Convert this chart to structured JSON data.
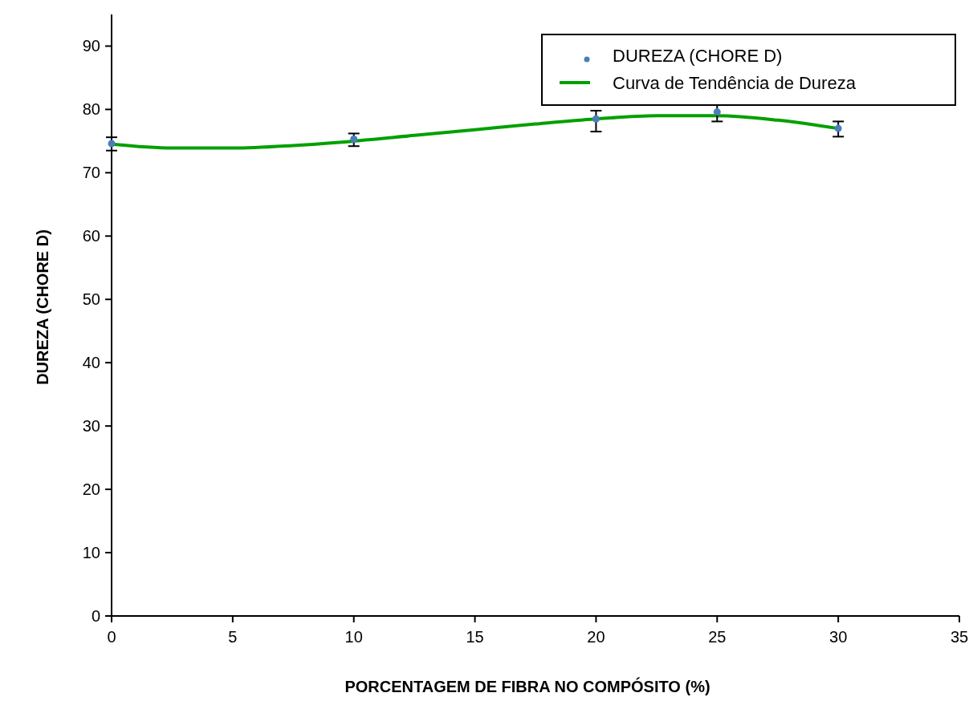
{
  "chart_data": {
    "type": "scatter",
    "xlabel": "PORCENTAGEM DE FIBRA NO COMPÓSITO (%)",
    "ylabel": "DUREZA (CHORE D)",
    "xlim": [
      0,
      35
    ],
    "xticks": [
      0,
      5,
      10,
      15,
      20,
      25,
      30,
      35
    ],
    "ylim": [
      0,
      95
    ],
    "yticks": [
      0,
      10,
      20,
      30,
      40,
      50,
      60,
      70,
      80,
      90
    ],
    "grid": false,
    "legend": "top right",
    "series": [
      {
        "name": "DUREZA (CHORE D)",
        "color": "#4a7ebb",
        "marker": "circle",
        "x": [
          0,
          10,
          20,
          25,
          30
        ],
        "values": [
          74.6,
          75.3,
          78.5,
          79.6,
          77.0
        ],
        "errors": [
          [
            73.5,
            75.6
          ],
          [
            74.2,
            76.2
          ],
          [
            76.5,
            79.8
          ],
          [
            78.1,
            80.8
          ],
          [
            75.7,
            78.1
          ]
        ]
      },
      {
        "name": "Curva de Tendência de Dureza",
        "type": "line",
        "color": "#00a000",
        "marker": "none",
        "line_style": "solid",
        "x": [
          0,
          2.5,
          5,
          7.5,
          10,
          12.5,
          15,
          17.5,
          20,
          22.5,
          25,
          27.5,
          30
        ],
        "values": [
          74.5,
          73.9,
          73.9,
          74.3,
          75.0,
          75.9,
          76.8,
          77.7,
          78.5,
          79.0,
          79.0,
          78.3,
          77.0
        ]
      }
    ]
  }
}
